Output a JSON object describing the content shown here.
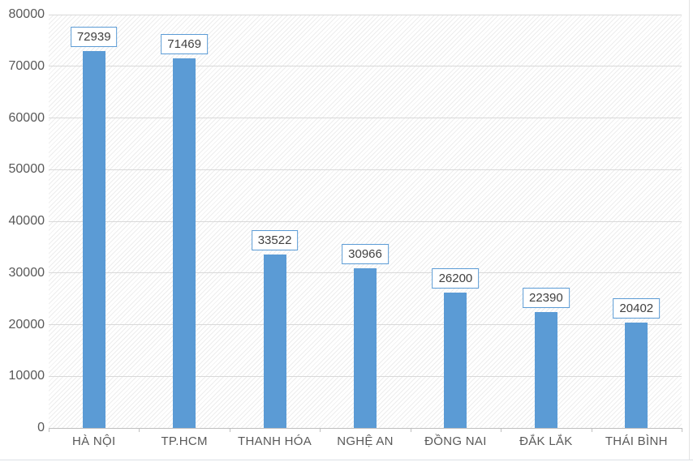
{
  "chart_data": {
    "type": "bar",
    "title": "",
    "xlabel": "",
    "ylabel": "",
    "categories": [
      "HÀ NỘI",
      "TP.HCM",
      "THANH HÓA",
      "NGHỆ AN",
      "ĐỒNG NAI",
      "ĐẮK LẮK",
      "THÁI BÌNH"
    ],
    "values": [
      72939,
      71469,
      33522,
      30966,
      26200,
      22390,
      20402
    ],
    "value_labels": [
      "72939",
      "71469",
      "33522",
      "30966",
      "26200",
      "22390",
      "20402"
    ],
    "y_ticks": [
      "0",
      "10000",
      "20000",
      "30000",
      "40000",
      "50000",
      "60000",
      "70000",
      "80000"
    ],
    "ylim": [
      0,
      80000
    ],
    "grid": true,
    "legend": false,
    "data_labels_boxed": true,
    "colors": {
      "bar_fill": "#5b9bd5",
      "value_label_border": "#5b9bd5",
      "value_label_text": "#404040",
      "axis_text": "#595959",
      "gridline": "#d9d9d9",
      "axis_line": "#bfbfbf",
      "hatch_line": "#ededed",
      "background": "#ffffff"
    }
  }
}
